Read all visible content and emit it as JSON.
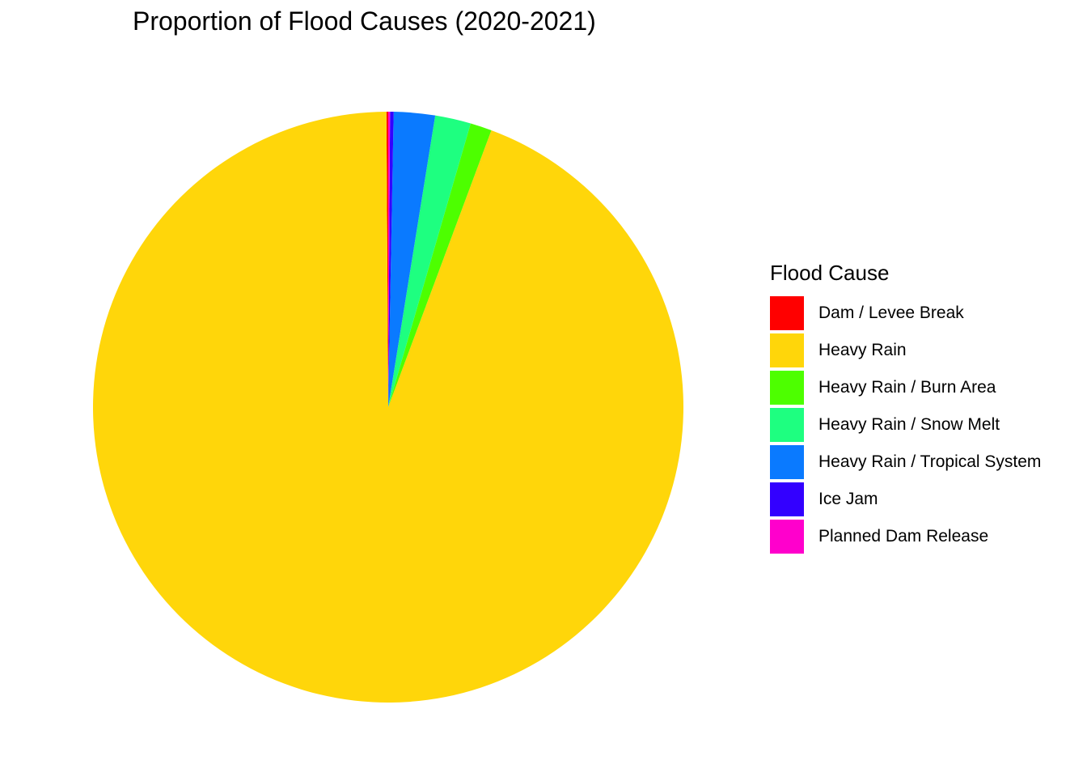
{
  "chart_data": {
    "type": "pie",
    "title": "Proportion of Flood Causes (2020-2021)",
    "legend_title": "Flood Cause",
    "legend_position": "right",
    "start": "top",
    "direction": "counterclockwise",
    "slices": [
      {
        "label": "Dam / Levee Break",
        "value": 0.1,
        "color": "#ff0000"
      },
      {
        "label": "Heavy Rain",
        "value": 96.2,
        "color": "#ffd60a"
      },
      {
        "label": "Heavy Rain / Burn Area",
        "value": 1.2,
        "color": "#4dff00"
      },
      {
        "label": "Heavy Rain / Snow Melt",
        "value": 2.0,
        "color": "#1eff80"
      },
      {
        "label": "Heavy Rain / Tropical System",
        "value": 2.3,
        "color": "#0a7aff"
      },
      {
        "label": "Ice Jam",
        "value": 0.2,
        "color": "#3300ff"
      },
      {
        "label": "Planned Dam Release",
        "value": 0.1,
        "color": "#ff00cc"
      }
    ]
  }
}
